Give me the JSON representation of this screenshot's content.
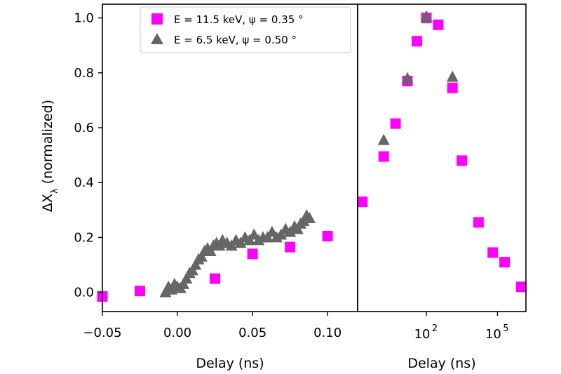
{
  "colors": {
    "series_1": "#ff00ff",
    "series_2": "#666666"
  },
  "chart_data": [
    {
      "type": "scatter",
      "panel": "left",
      "xlabel": "Delay (ns)",
      "ylabel": "ΔX_λ (normalized)",
      "xlim": [
        -0.05,
        0.12
      ],
      "ylim": [
        -0.07,
        1.05
      ],
      "xticks": [
        -0.05,
        0.0,
        0.05,
        0.1
      ],
      "xtick_labels": [
        "−0.05",
        "0.00",
        "0.05",
        "0.10"
      ],
      "yticks": [
        0.0,
        0.2,
        0.4,
        0.6,
        0.8,
        1.0
      ],
      "ytick_labels": [
        "0.0",
        "0.2",
        "0.4",
        "0.6",
        "0.8",
        "1.0"
      ],
      "grid": false,
      "legend": "top-right",
      "series": [
        {
          "name": "E = 11.5 keV, ψ = 0.35 °",
          "marker": "square",
          "x": [
            -0.05,
            -0.025,
            0.025,
            0.05,
            0.075,
            0.1
          ],
          "y": [
            -0.015,
            0.005,
            0.05,
            0.14,
            0.165,
            0.205
          ]
        },
        {
          "name": "E = 6.5 keV, ψ = 0.50 °",
          "marker": "triangle",
          "x": [
            -0.008,
            -0.006,
            -0.004,
            -0.002,
            0.0,
            0.002,
            0.004,
            0.006,
            0.008,
            0.01,
            0.012,
            0.014,
            0.016,
            0.018,
            0.02,
            0.022,
            0.024,
            0.026,
            0.028,
            0.03,
            0.033,
            0.036,
            0.039,
            0.042,
            0.045,
            0.048,
            0.051,
            0.054,
            0.057,
            0.06,
            0.063,
            0.066,
            0.069,
            0.072,
            0.075,
            0.078,
            0.08,
            0.082,
            0.084,
            0.086,
            0.088
          ],
          "y": [
            0.0,
            0.02,
            0.01,
            0.03,
            0.02,
            0.015,
            0.03,
            0.05,
            0.07,
            0.08,
            0.1,
            0.12,
            0.13,
            0.15,
            0.16,
            0.15,
            0.17,
            0.18,
            0.17,
            0.19,
            0.18,
            0.17,
            0.19,
            0.18,
            0.2,
            0.19,
            0.21,
            0.19,
            0.2,
            0.2,
            0.22,
            0.2,
            0.21,
            0.23,
            0.22,
            0.24,
            0.23,
            0.25,
            0.26,
            0.28,
            0.27
          ]
        }
      ]
    },
    {
      "type": "scatter",
      "panel": "right",
      "xscale": "log",
      "xlabel": "Delay (ns)",
      "xlim": [
        -0.9,
        6.2
      ],
      "ylim": [
        -0.07,
        1.05
      ],
      "xticks": [
        2,
        5
      ],
      "xtick_labels": [
        "10",
        "10"
      ],
      "xtick_exponents": [
        "2",
        "5"
      ],
      "grid": false,
      "series": [
        {
          "name": "E = 11.5 keV, ψ = 0.35 °",
          "marker": "square",
          "x": [
            -0.7,
            0.2,
            0.7,
            1.2,
            1.6,
            2.0,
            2.5,
            3.1,
            3.5,
            4.2,
            4.8,
            5.3,
            6.0
          ],
          "y": [
            0.33,
            0.495,
            0.615,
            0.77,
            0.915,
            1.0,
            0.975,
            0.745,
            0.48,
            0.255,
            0.145,
            0.11,
            0.02
          ]
        },
        {
          "name": "E = 6.5 keV, ψ = 0.50 °",
          "marker": "triangle",
          "x": [
            0.2,
            1.2,
            2.0,
            3.1
          ],
          "y": [
            0.555,
            0.78,
            1.005,
            0.785
          ]
        }
      ]
    }
  ]
}
